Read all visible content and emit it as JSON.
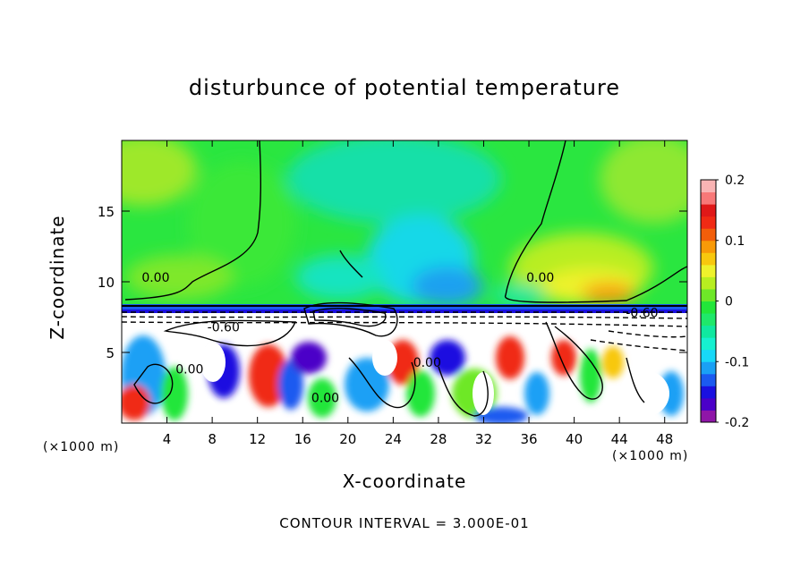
{
  "chart_data": {
    "type": "heatmap",
    "title": "disturbunce of potential temperature",
    "xlabel": "X-coordinate",
    "ylabel": "Z-coordinate",
    "x_unit": "(×1000 m)",
    "x_unit_right": "(×1000 m)",
    "xlim": [
      0,
      50
    ],
    "ylim": [
      0,
      20
    ],
    "x_ticks": [
      "4",
      "8",
      "12",
      "16",
      "20",
      "24",
      "28",
      "32",
      "36",
      "40",
      "44",
      "48"
    ],
    "y_ticks": [
      "5",
      "10",
      "15"
    ],
    "colorbar": {
      "range": [
        -0.2,
        0.2
      ],
      "tick_labels": [
        "0.2",
        "0.1",
        "0",
        "-0.1",
        "-0.2"
      ],
      "colors": [
        "#8f16a8",
        "#4b00c8",
        "#1a10e0",
        "#1b5af0",
        "#1aa0f5",
        "#18d8f8",
        "#16f0d0",
        "#10e8a0",
        "#1fe86a",
        "#22e63a",
        "#6ee828",
        "#b8ee20",
        "#eef22c",
        "#f8c80e",
        "#f89a08",
        "#f25e0a",
        "#f02a14",
        "#e01818",
        "#f87878",
        "#f9b4b4"
      ]
    },
    "contour_labels": [
      {
        "text": "0.00",
        "x": 3,
        "z": 10
      },
      {
        "text": "0.00",
        "x": 37,
        "z": 10
      },
      {
        "text": "-0.60",
        "x": 46,
        "z": 7.5
      },
      {
        "text": "-0.60",
        "x": 9,
        "z": 6.5
      },
      {
        "text": "0.00",
        "x": 6,
        "z": 3.5
      },
      {
        "text": "0.00",
        "x": 18,
        "z": 1.5
      },
      {
        "text": "0.00",
        "x": 27,
        "z": 4
      }
    ],
    "contour_interval_text": "CONTOUR INTERVAL = 3.000E-01"
  }
}
